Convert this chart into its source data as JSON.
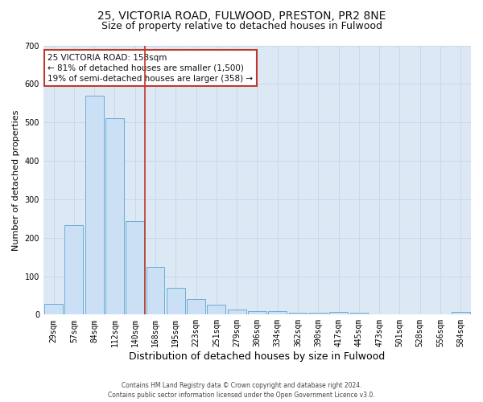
{
  "title1": "25, VICTORIA ROAD, FULWOOD, PRESTON, PR2 8NE",
  "title2": "Size of property relative to detached houses in Fulwood",
  "xlabel": "Distribution of detached houses by size in Fulwood",
  "ylabel": "Number of detached properties",
  "categories": [
    "29sqm",
    "57sqm",
    "84sqm",
    "112sqm",
    "140sqm",
    "168sqm",
    "195sqm",
    "223sqm",
    "251sqm",
    "279sqm",
    "306sqm",
    "334sqm",
    "362sqm",
    "390sqm",
    "417sqm",
    "445sqm",
    "473sqm",
    "501sqm",
    "528sqm",
    "556sqm",
    "584sqm"
  ],
  "values": [
    27,
    232,
    570,
    510,
    243,
    125,
    70,
    40,
    25,
    14,
    10,
    10,
    5,
    5,
    7,
    5,
    0,
    0,
    0,
    0,
    7
  ],
  "bar_color": "#cce0f5",
  "bar_edge_color": "#6aaed6",
  "vline_color": "#c0392b",
  "annotation_text": "25 VICTORIA ROAD: 158sqm\n← 81% of detached houses are smaller (1,500)\n19% of semi-detached houses are larger (358) →",
  "annotation_box_color": "#ffffff",
  "annotation_box_edge": "#c0392b",
  "ylim": [
    0,
    700
  ],
  "yticks": [
    0,
    100,
    200,
    300,
    400,
    500,
    600,
    700
  ],
  "grid_color": "#c8d8ea",
  "background_color": "#dce9f5",
  "footer": "Contains HM Land Registry data © Crown copyright and database right 2024.\nContains public sector information licensed under the Open Government Licence v3.0.",
  "title1_fontsize": 10,
  "title2_fontsize": 9,
  "xlabel_fontsize": 9,
  "ylabel_fontsize": 8,
  "tick_fontsize": 7,
  "annotation_fontsize": 7.5,
  "footer_fontsize": 5.5
}
